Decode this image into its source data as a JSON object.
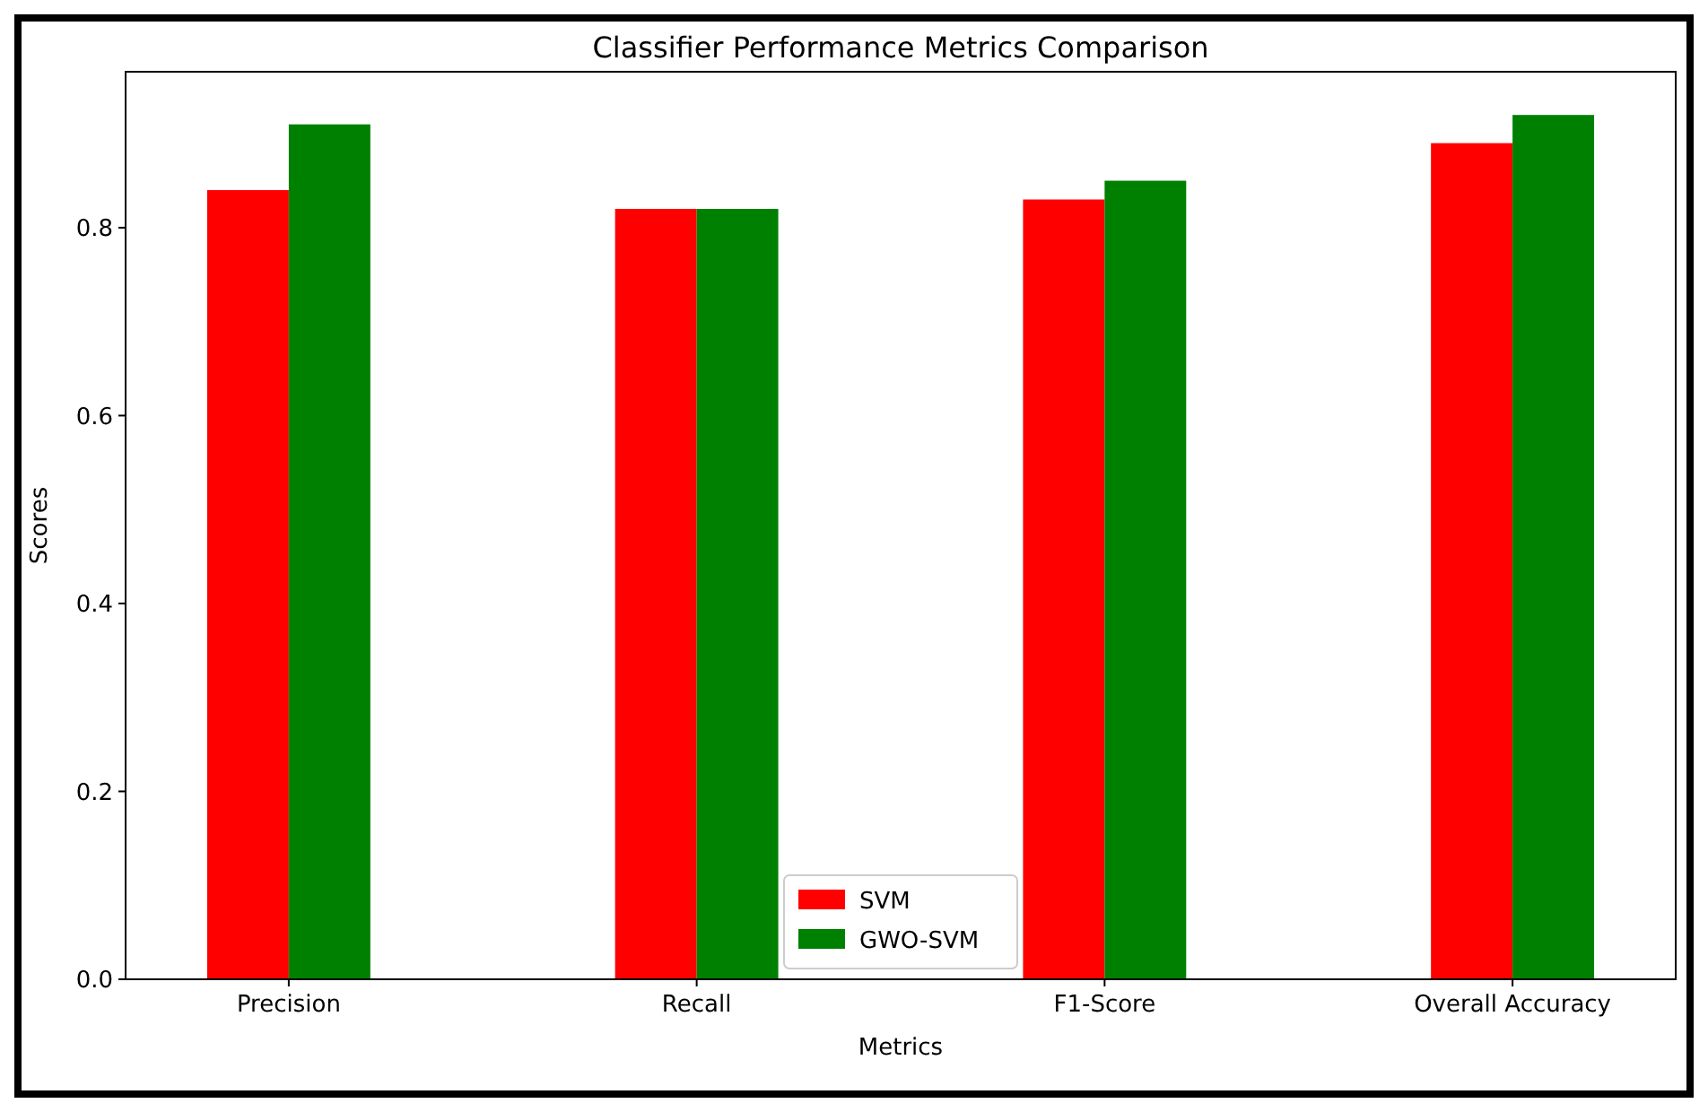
{
  "chart_data": {
    "type": "bar",
    "title": "Classifier Performance Metrics Comparison",
    "xlabel": "Metrics",
    "ylabel": "Scores",
    "categories": [
      "Precision",
      "Recall",
      "F1-Score",
      "Overall Accuracy"
    ],
    "series": [
      {
        "name": "SVM",
        "color": "#ff0000",
        "values": [
          0.84,
          0.82,
          0.83,
          0.89
        ]
      },
      {
        "name": "GWO-SVM",
        "color": "#008000",
        "values": [
          0.91,
          0.82,
          0.85,
          0.92
        ]
      }
    ],
    "ylim": [
      0,
      0.966
    ],
    "yticks": [
      {
        "value": 0,
        "label": "0.0"
      },
      {
        "value": 0.2,
        "label": "0.2"
      },
      {
        "value": 0.4,
        "label": "0.4"
      },
      {
        "value": 0.6,
        "label": "0.6"
      },
      {
        "value": 0.8,
        "label": "0.8"
      }
    ],
    "legend": "bottom",
    "grid": false
  }
}
